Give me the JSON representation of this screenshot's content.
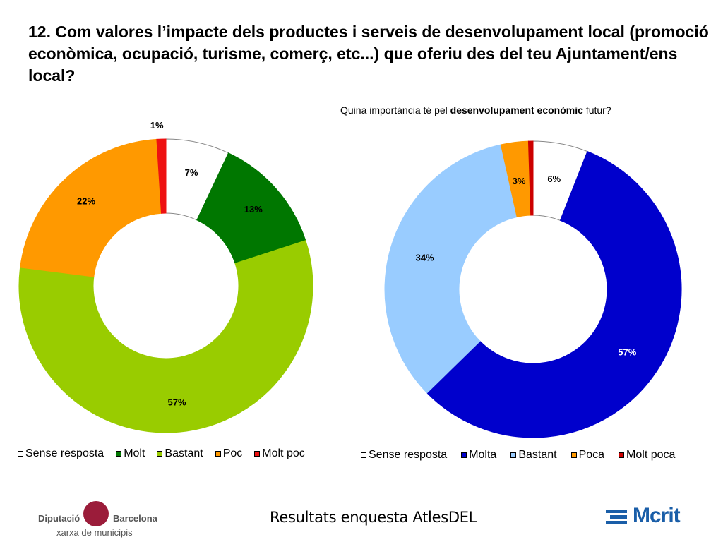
{
  "title": "12. Com valores l’impacte dels productes i serveis de desenvolupament local (promoció econòmica, ocupació, turisme, comerç, etc...) que oferiu des del teu Ajuntament/ens local?",
  "subtitle": {
    "prefix": "Quina importància té pel ",
    "bold": "desenvolupament econòmic",
    "suffix": " futur?"
  },
  "chart_data": [
    {
      "type": "pie",
      "donut": true,
      "categories": [
        "Sense resposta",
        "Molt",
        "Bastant",
        "Poc",
        "Molt poc"
      ],
      "values": [
        7,
        13,
        57,
        22,
        1
      ],
      "labels": [
        "7%",
        "13%",
        "57%",
        "22%",
        "1%"
      ],
      "colors": [
        "#ffffff",
        "#007700",
        "#99cc00",
        "#ff9900",
        "#ee1111"
      ],
      "legend_position": "bottom"
    },
    {
      "type": "pie",
      "donut": true,
      "title": "Quina importància té pel desenvolupament econòmic futur?",
      "categories": [
        "Sense resposta",
        "Molta",
        "Bastant",
        "Poca",
        "Molt poca"
      ],
      "values": [
        6,
        57,
        34,
        3,
        0.5
      ],
      "labels": [
        "6%",
        "57%",
        "34%",
        "3%",
        ""
      ],
      "colors": [
        "#ffffff",
        "#0000cc",
        "#99ccff",
        "#ff9900",
        "#cc0000"
      ],
      "legend_position": "bottom"
    }
  ],
  "footer": {
    "center_text": "Resultats enquesta AtlesDEL",
    "logo_left_name1": "Diputació",
    "logo_left_name2": "Barcelona",
    "logo_left_sub": "xarxa de municipis",
    "logo_right_text": "Mcrit"
  }
}
